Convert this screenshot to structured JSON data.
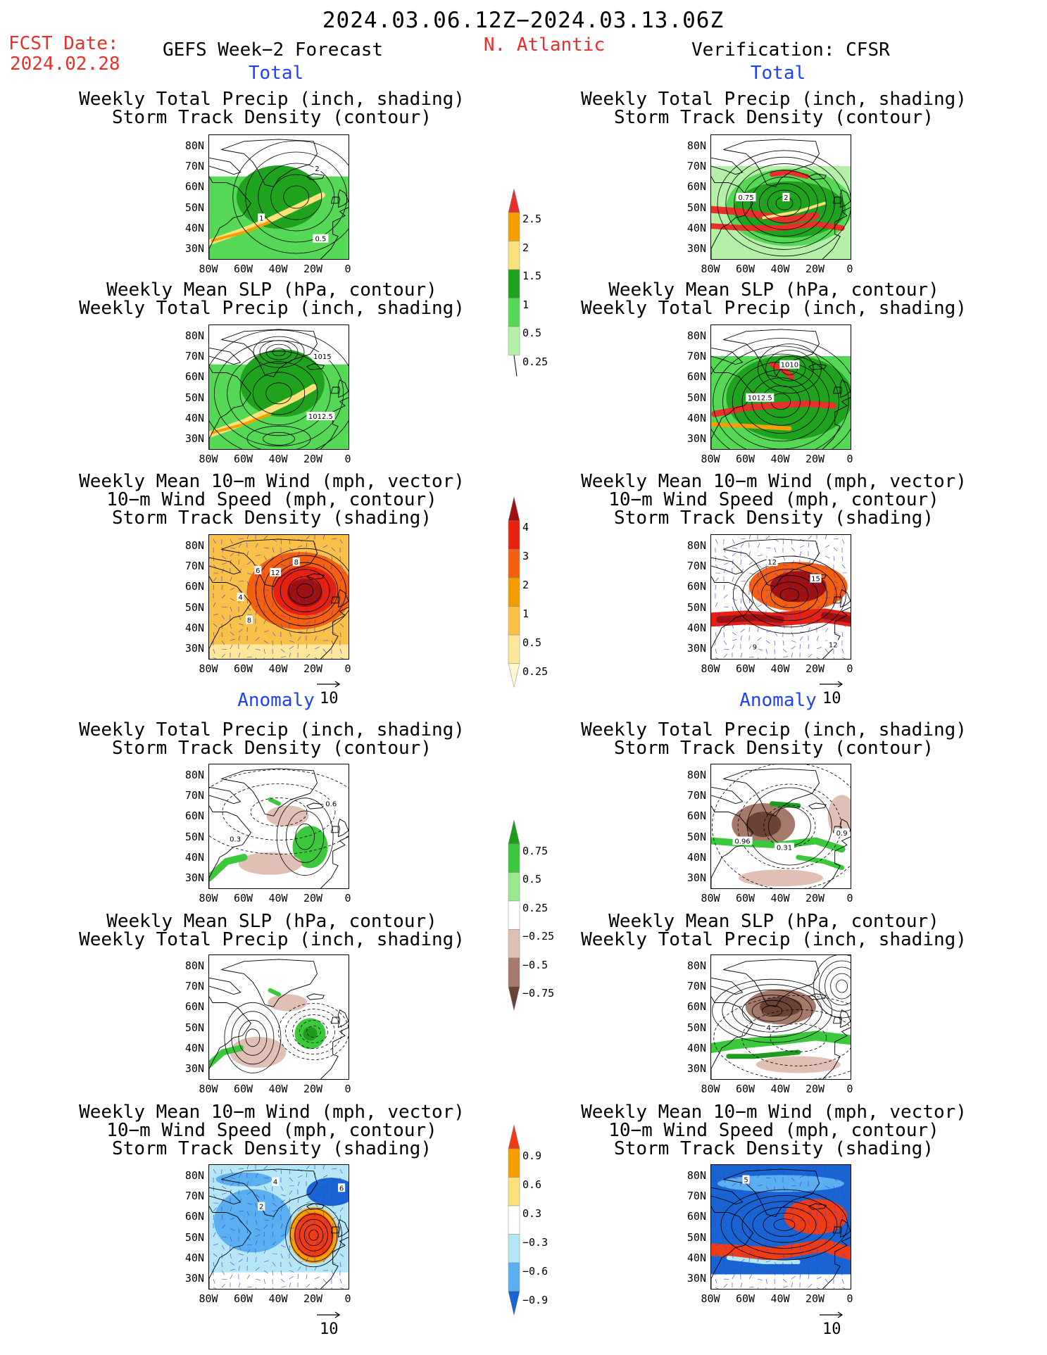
{
  "header": {
    "title": "2024.03.06.12Z−2024.03.13.06Z",
    "region": "N. Atlantic",
    "fcst_label": "FCST Date:",
    "fcst_date": "2024.02.28",
    "model": "GEFS Week−2 Forecast",
    "verification": "Verification: CFSR"
  },
  "section_labels": {
    "total": "Total",
    "anomaly": "Anomaly"
  },
  "panel_titles": {
    "precip_storm": [
      "Weekly Total Precip (inch, shading)",
      "Storm Track Density (contour)"
    ],
    "slp_precip": [
      "Weekly Mean SLP (hPa, contour)",
      "Weekly Total Precip (inch, shading)"
    ],
    "wind_storm": [
      "Weekly Mean 10−m Wind (mph, vector)",
      "10−m Wind Speed (mph, contour)",
      "Storm Track Density (shading)"
    ]
  },
  "axes": {
    "lat_labels": [
      "80N",
      "70N",
      "60N",
      "50N",
      "40N",
      "30N"
    ],
    "lon_labels": [
      "80W",
      "60W",
      "40W",
      "20W",
      "0"
    ]
  },
  "vector_ref": "10",
  "contour_labels": {
    "fcst_total_precip": [
      "2",
      "1",
      "0.5"
    ],
    "fcst_total_slp": [
      "1015",
      "1012.5"
    ],
    "fcst_total_wind": [
      "6",
      "12",
      "8",
      "4",
      "8"
    ],
    "verif_total_precip": [
      "0.75",
      "2"
    ],
    "verif_total_slp": [
      "1010",
      "1012.5"
    ],
    "verif_total_wind": [
      "12",
      "15",
      "9",
      "12"
    ],
    "fcst_anom_precip": [
      "0.6",
      "0.3"
    ],
    "verif_anom_precip": [
      "0.96",
      "0.31",
      "0.9"
    ],
    "verif_anom_slp": [
      "4"
    ],
    "fcst_anom_wind": [
      "4",
      "2",
      "6"
    ],
    "verif_anom_wind": [
      "5"
    ]
  },
  "colorbars": {
    "precip_total": {
      "labels": [
        "2.5",
        "2",
        "1.5",
        "1",
        "0.5",
        "0.25"
      ],
      "colors": [
        "#e8302a",
        "#f5a000",
        "#ffe17a",
        "#1fa31f",
        "#55d855",
        "#b4f0a8"
      ]
    },
    "storm_total": {
      "labels": [
        "4",
        "3",
        "2",
        "1",
        "0.5",
        "0.25"
      ],
      "colors": [
        "#a01010",
        "#e82010",
        "#f56010",
        "#f59c00",
        "#f9c04a",
        "#ffe79b",
        "#fff8cc"
      ]
    },
    "precip_anom": {
      "labels": [
        "0.75",
        "0.5",
        "0.25",
        "−0.25",
        "−0.5",
        "−0.75"
      ],
      "colors": [
        "#1f9c1f",
        "#3cc83c",
        "#9ae890",
        "#ffffff",
        "#e0c0b4",
        "#a67a6a",
        "#6b4236"
      ]
    },
    "storm_anom": {
      "labels": [
        "0.9",
        "0.6",
        "0.3",
        "−0.3",
        "−0.6",
        "−0.9"
      ],
      "colors": [
        "#f03c14",
        "#f5a000",
        "#ffe17a",
        "#ffffff",
        "#b4e6f5",
        "#5aaff0",
        "#1864d2"
      ]
    }
  }
}
